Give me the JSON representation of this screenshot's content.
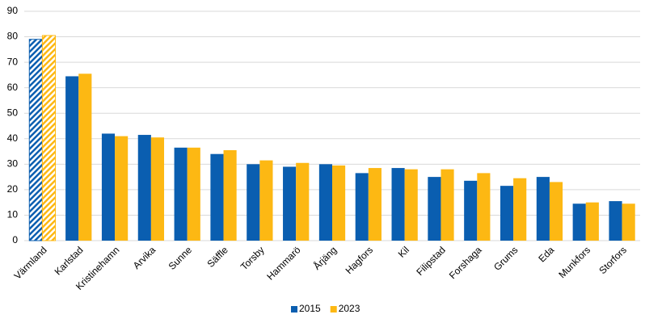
{
  "chart_data": {
    "type": "bar",
    "categories": [
      "Värmland",
      "Karlstad",
      "Kristinehamn",
      "Arvika",
      "Sunne",
      "Säffle",
      "Torsby",
      "Hammarö",
      "Årjäng",
      "Hagfors",
      "Kil",
      "Filipstad",
      "Forshaga",
      "Grums",
      "Eda",
      "Munkfors",
      "Storfors"
    ],
    "series": [
      {
        "name": "2015",
        "color": "#0a5eb0",
        "values": [
          79,
          64.5,
          42,
          41.5,
          36.5,
          34,
          30,
          29,
          30,
          26.5,
          28.5,
          25,
          23.5,
          21.5,
          25,
          14.5,
          15.5
        ]
      },
      {
        "name": "2023",
        "color": "#fdb813",
        "values": [
          80.5,
          65.5,
          41,
          40.5,
          36.5,
          35.5,
          31.5,
          30.5,
          29.5,
          28.5,
          28,
          28,
          26.5,
          24.5,
          23,
          15,
          14.5
        ]
      }
    ],
    "hatched_categories": [
      0
    ],
    "ylim": [
      0,
      90
    ],
    "yticks": [
      0,
      10,
      20,
      30,
      40,
      50,
      60,
      70,
      80,
      90
    ],
    "grid": true,
    "legend": "bottom"
  }
}
